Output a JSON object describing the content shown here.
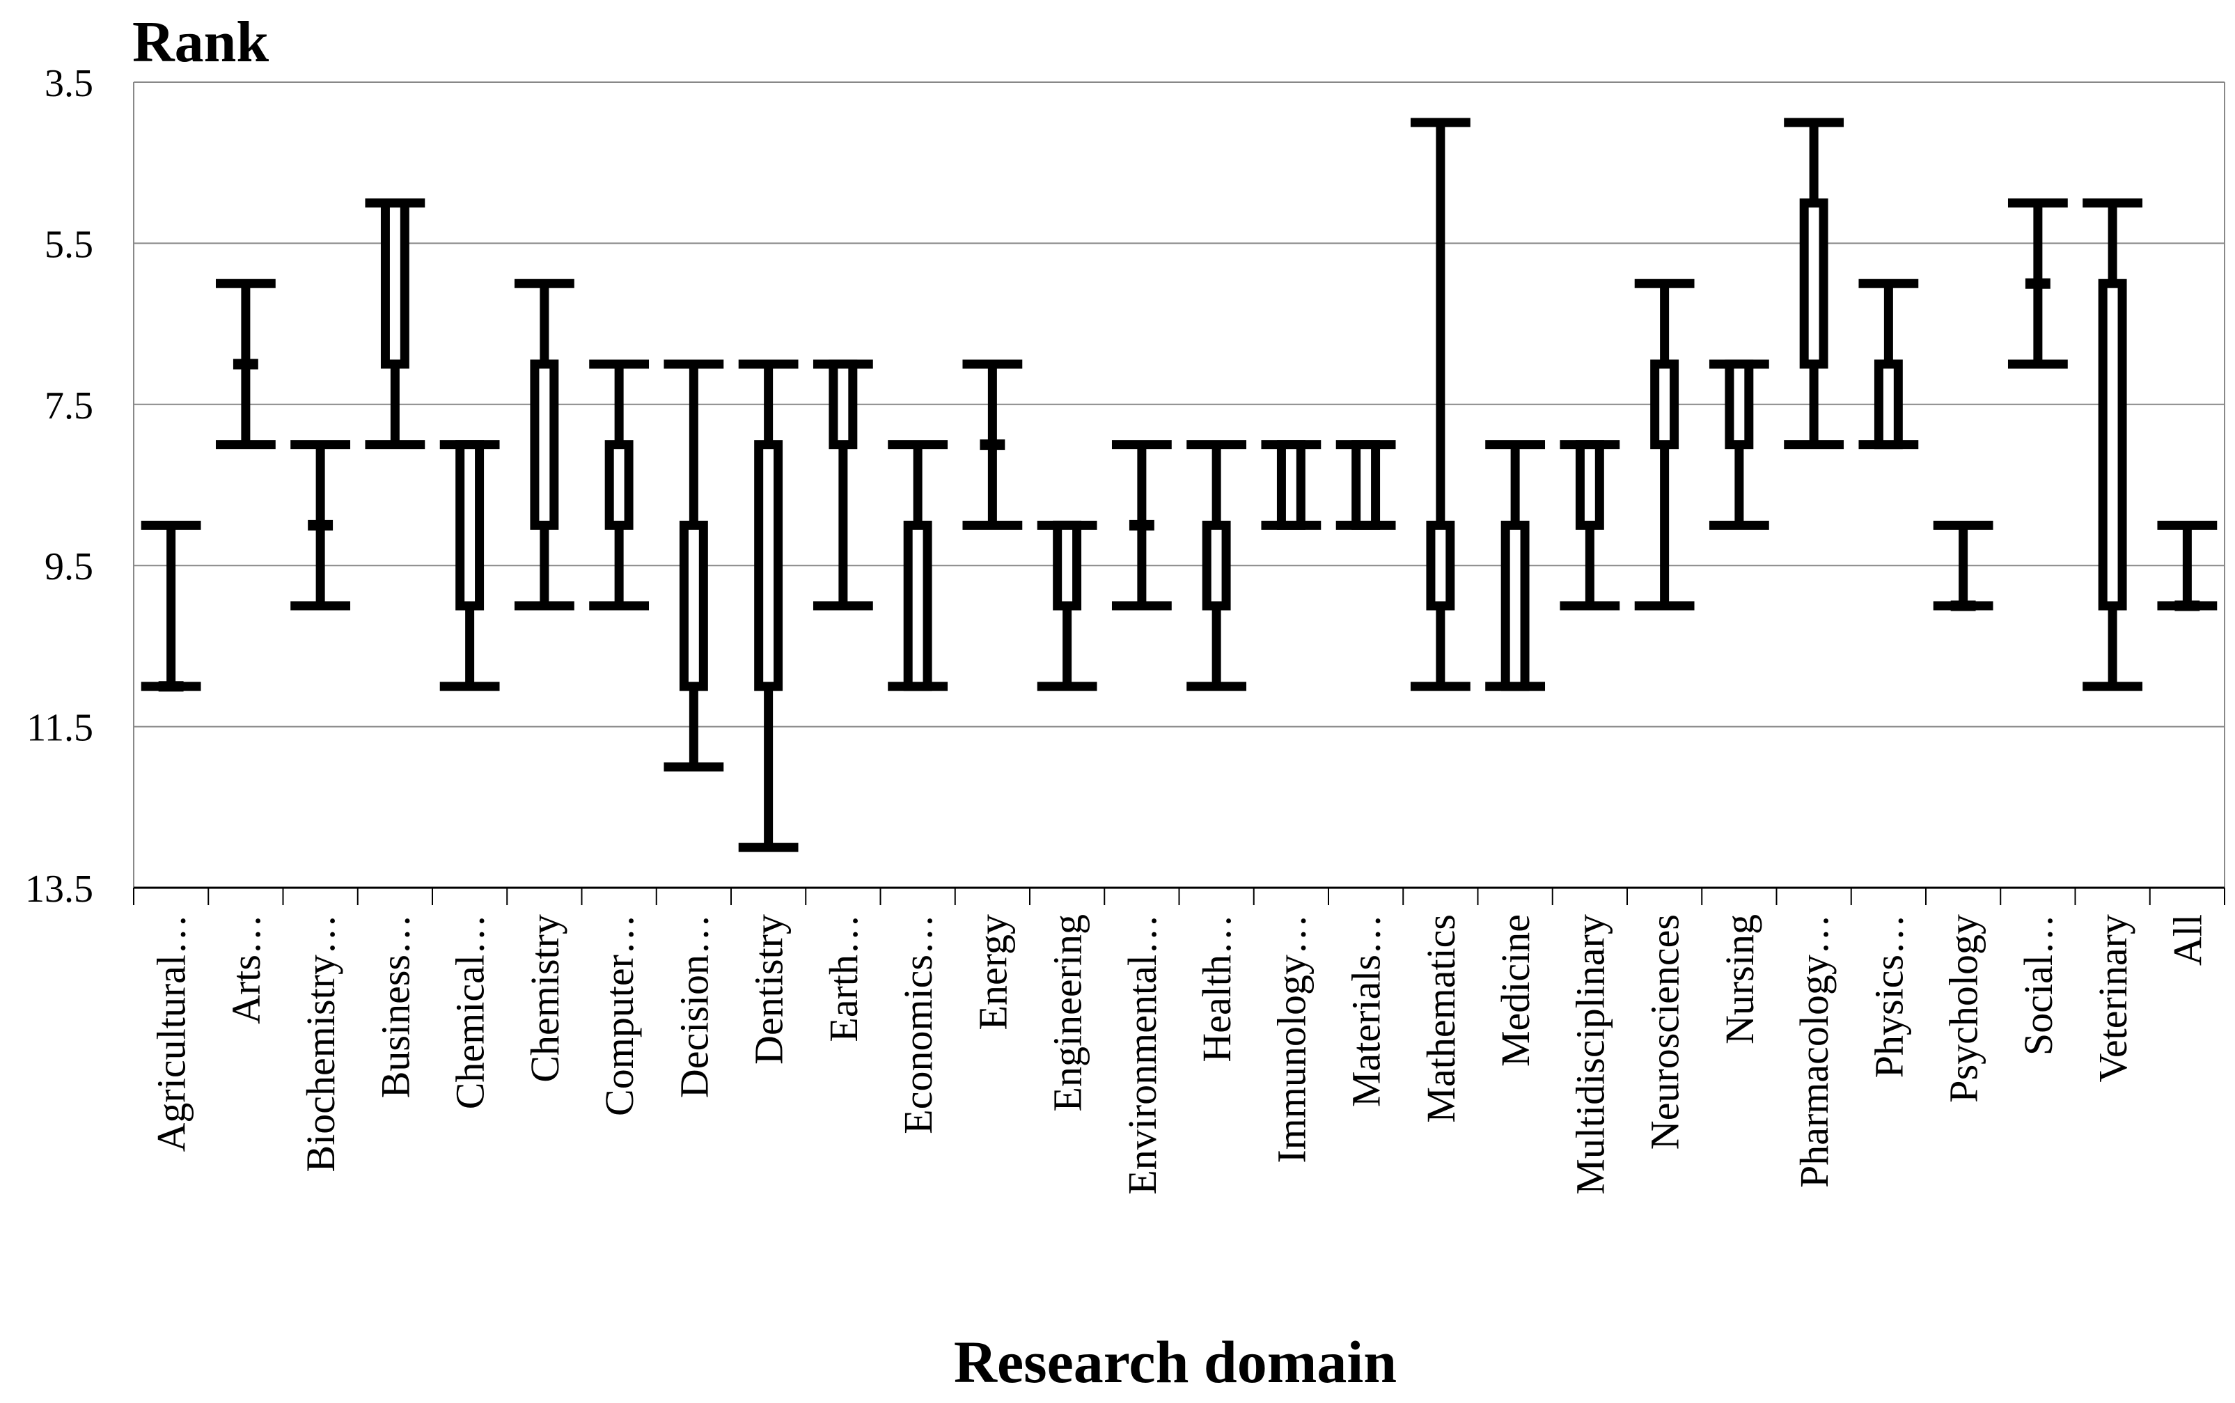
{
  "chart_data": {
    "type": "box",
    "ylabel": "Rank",
    "xlabel": "Research domain",
    "y_axis_inverted": true,
    "ylim": [
      3.5,
      13.5
    ],
    "y_ticks": [
      "3.5",
      "5.5",
      "7.5",
      "9.5",
      "11.5",
      "13.5"
    ],
    "y_tick_values": [
      3.5,
      5.5,
      7.5,
      9.5,
      11.5,
      13.5
    ],
    "grid": true,
    "categories": [
      "Agricultural…",
      "Arts…",
      "Biochemistry…",
      "Business…",
      "Chemical…",
      "Chemistry",
      "Computer…",
      "Decision…",
      "Dentistry",
      "Earth…",
      "Economics…",
      "Energy",
      "Engineering",
      "Environmental…",
      "Health…",
      "Immunology…",
      "Materials…",
      "Mathematics",
      "Medicine",
      "Multidisciplinary",
      "Neurosciences",
      "Nursing",
      "Pharmacology…",
      "Physics…",
      "Psychology",
      "Social…",
      "Veterinary",
      "All"
    ],
    "boxes": [
      {
        "min": 9,
        "q1": 11,
        "q3": 11,
        "max": 11
      },
      {
        "min": 6,
        "q1": 7,
        "q3": 7,
        "max": 8
      },
      {
        "min": 8,
        "q1": 9,
        "q3": 9,
        "max": 10
      },
      {
        "min": 5,
        "q1": 5,
        "q3": 7,
        "max": 8
      },
      {
        "min": 8,
        "q1": 8,
        "q3": 10,
        "max": 11
      },
      {
        "min": 6,
        "q1": 7,
        "q3": 9,
        "max": 10
      },
      {
        "min": 7,
        "q1": 8,
        "q3": 9,
        "max": 10
      },
      {
        "min": 7,
        "q1": 9,
        "q3": 11,
        "max": 12
      },
      {
        "min": 7,
        "q1": 8,
        "q3": 11,
        "max": 13
      },
      {
        "min": 7,
        "q1": 7,
        "q3": 8,
        "max": 10
      },
      {
        "min": 8,
        "q1": 9,
        "q3": 11,
        "max": 11
      },
      {
        "min": 7,
        "q1": 8,
        "q3": 8,
        "max": 9
      },
      {
        "min": 9,
        "q1": 9,
        "q3": 10,
        "max": 11
      },
      {
        "min": 8,
        "q1": 9,
        "q3": 9,
        "max": 10
      },
      {
        "min": 8,
        "q1": 9,
        "q3": 10,
        "max": 11
      },
      {
        "min": 8,
        "q1": 8,
        "q3": 9,
        "max": 9
      },
      {
        "min": 8,
        "q1": 8,
        "q3": 9,
        "max": 9
      },
      {
        "min": 4,
        "q1": 9,
        "q3": 10,
        "max": 11
      },
      {
        "min": 8,
        "q1": 9,
        "q3": 11,
        "max": 11
      },
      {
        "min": 8,
        "q1": 8,
        "q3": 9,
        "max": 10
      },
      {
        "min": 6,
        "q1": 7,
        "q3": 8,
        "max": 10
      },
      {
        "min": 7,
        "q1": 7,
        "q3": 8,
        "max": 9
      },
      {
        "min": 4,
        "q1": 5,
        "q3": 7,
        "max": 8
      },
      {
        "min": 6,
        "q1": 7,
        "q3": 8,
        "max": 8
      },
      {
        "min": 9,
        "q1": 10,
        "q3": 10,
        "max": 10
      },
      {
        "min": 5,
        "q1": 6,
        "q3": 6,
        "max": 7
      },
      {
        "min": 5,
        "q1": 6,
        "q3": 10,
        "max": 11
      },
      {
        "min": 9,
        "q1": 10,
        "q3": 10,
        "max": 10
      }
    ],
    "colors": {
      "line": "#000000",
      "grid": "#888888",
      "box_fill": "#ffffff",
      "background": "#ffffff"
    }
  }
}
